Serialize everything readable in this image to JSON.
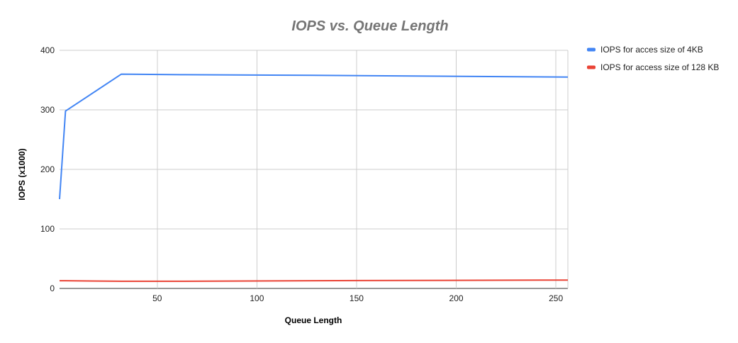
{
  "chart_data": {
    "type": "line",
    "title": "IOPS vs. Queue Length",
    "xlabel": "Queue Length",
    "ylabel": "IOPS (x1000)",
    "xlim": [
      1,
      256
    ],
    "ylim": [
      0,
      400
    ],
    "xticks": [
      50,
      100,
      150,
      200,
      250
    ],
    "yticks": [
      0,
      100,
      200,
      300,
      400
    ],
    "grid": true,
    "legend_position": "right",
    "series": [
      {
        "name": "IOPS for acces size of 4KB",
        "color": "#4285f4",
        "x": [
          1,
          4,
          32,
          64,
          128,
          256
        ],
        "y": [
          150,
          298,
          360,
          359,
          358,
          355
        ]
      },
      {
        "name": "IOPS for access size of 128 KB",
        "color": "#ea4335",
        "x": [
          1,
          4,
          32,
          64,
          128,
          256
        ],
        "y": [
          13,
          13,
          12,
          12,
          13,
          14
        ]
      }
    ]
  }
}
